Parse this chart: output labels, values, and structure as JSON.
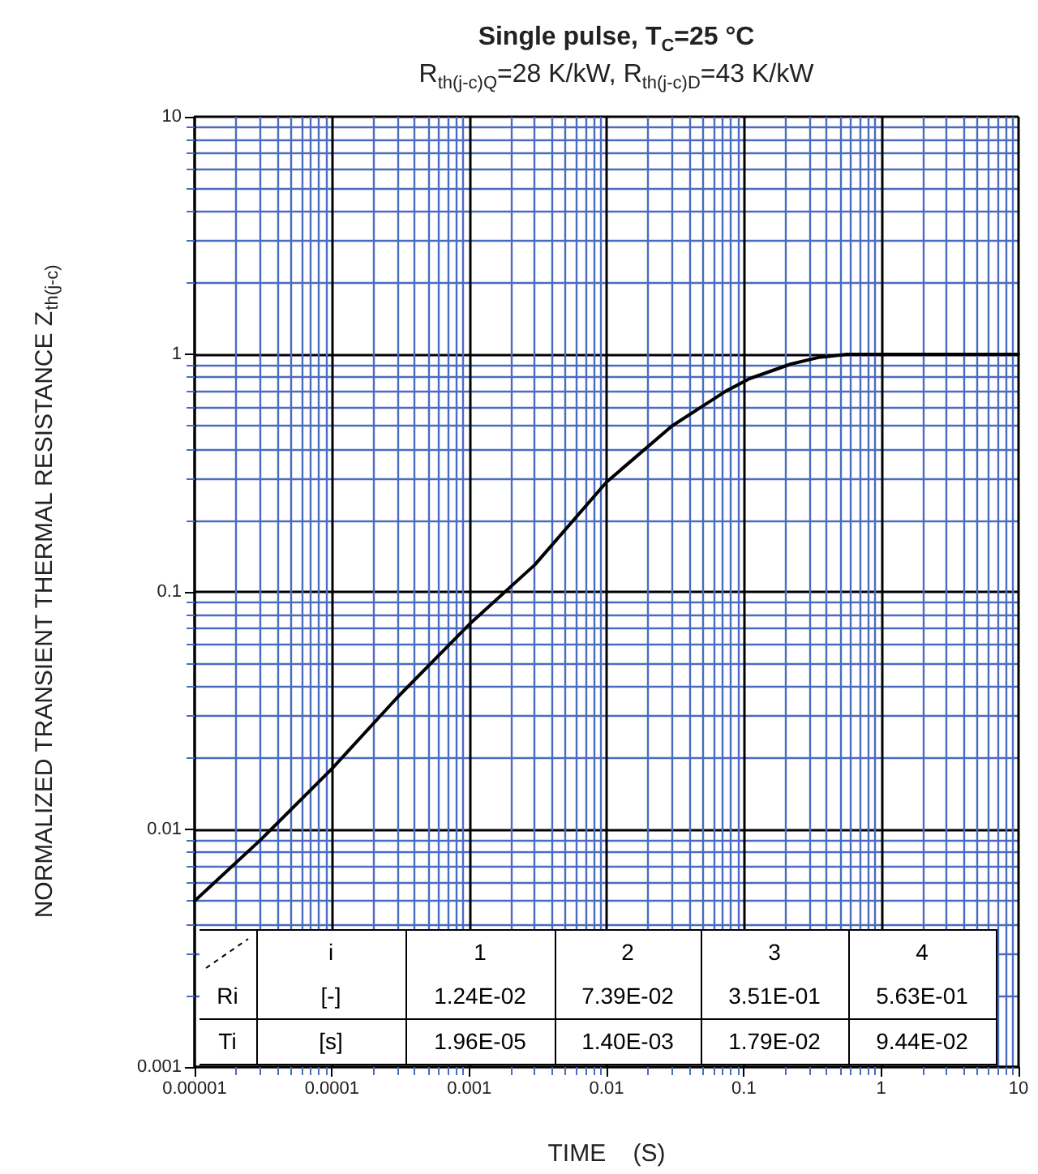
{
  "chart_data": {
    "type": "line",
    "title": "Single pulse, T$_{C}$=25 °C",
    "subtitle": "R$_{th(j-c)Q}$=28 K/kW, R$_{th(j-c)D}$=43 K/kW",
    "xlabel": "TIME    (S)",
    "ylabel": "NORMALIZED TRANSIENT THERMAL RESISTANCE Z$_{th(j-c)}$",
    "log": "xy",
    "grid": true,
    "marker": "none",
    "line_style": "solid",
    "xlim": [
      1e-05,
      10
    ],
    "xticks": [
      {
        "value": 1e-05,
        "label": "0.00001"
      },
      {
        "value": 2e-05,
        "label": null
      },
      {
        "value": 3e-05,
        "label": null
      },
      {
        "value": 4e-05,
        "label": null
      },
      {
        "value": 5e-05,
        "label": null
      },
      {
        "value": 6e-05,
        "label": null
      },
      {
        "value": 7e-05,
        "label": null
      },
      {
        "value": 8e-05,
        "label": null
      },
      {
        "value": 9e-05,
        "label": null
      },
      {
        "value": 0.0001,
        "label": "0.0001"
      },
      {
        "value": 0.0002,
        "label": null
      },
      {
        "value": 0.0003,
        "label": null
      },
      {
        "value": 0.0004,
        "label": null
      },
      {
        "value": 0.0005,
        "label": null
      },
      {
        "value": 0.0006,
        "label": null
      },
      {
        "value": 0.0007,
        "label": null
      },
      {
        "value": 0.0008,
        "label": null
      },
      {
        "value": 0.0009,
        "label": null
      },
      {
        "value": 0.001,
        "label": "0.001"
      },
      {
        "value": 0.002,
        "label": null
      },
      {
        "value": 0.003,
        "label": null
      },
      {
        "value": 0.004,
        "label": null
      },
      {
        "value": 0.005,
        "label": null
      },
      {
        "value": 0.006,
        "label": null
      },
      {
        "value": 0.007,
        "label": null
      },
      {
        "value": 0.008,
        "label": null
      },
      {
        "value": 0.009,
        "label": null
      },
      {
        "value": 0.01,
        "label": "0.01"
      },
      {
        "value": 0.02,
        "label": null
      },
      {
        "value": 0.03,
        "label": null
      },
      {
        "value": 0.04,
        "label": null
      },
      {
        "value": 0.05,
        "label": null
      },
      {
        "value": 0.06,
        "label": null
      },
      {
        "value": 0.07,
        "label": null
      },
      {
        "value": 0.08,
        "label": null
      },
      {
        "value": 0.09,
        "label": null
      },
      {
        "value": 0.1,
        "label": "0.1"
      },
      {
        "value": 0.2,
        "label": null
      },
      {
        "value": 0.3,
        "label": null
      },
      {
        "value": 0.4,
        "label": null
      },
      {
        "value": 0.5,
        "label": null
      },
      {
        "value": 0.6,
        "label": null
      },
      {
        "value": 0.7,
        "label": null
      },
      {
        "value": 0.8,
        "label": null
      },
      {
        "value": 0.9,
        "label": null
      },
      {
        "value": 1,
        "label": "1"
      },
      {
        "value": 2,
        "label": null
      },
      {
        "value": 3,
        "label": null
      },
      {
        "value": 4,
        "label": null
      },
      {
        "value": 5,
        "label": null
      },
      {
        "value": 6,
        "label": null
      },
      {
        "value": 7,
        "label": null
      },
      {
        "value": 8,
        "label": null
      },
      {
        "value": 9,
        "label": null
      },
      {
        "value": 10,
        "label": "10"
      }
    ],
    "ylim": [
      0.001,
      10
    ],
    "yticks": [
      {
        "value": 0.001,
        "label": "0.001"
      },
      {
        "value": 0.002,
        "label": null
      },
      {
        "value": 0.003,
        "label": null
      },
      {
        "value": 0.004,
        "label": null
      },
      {
        "value": 0.005,
        "label": null
      },
      {
        "value": 0.006,
        "label": null
      },
      {
        "value": 0.007,
        "label": null
      },
      {
        "value": 0.008,
        "label": null
      },
      {
        "value": 0.009,
        "label": null
      },
      {
        "value": 0.01,
        "label": "0.01"
      },
      {
        "value": 0.02,
        "label": null
      },
      {
        "value": 0.03,
        "label": null
      },
      {
        "value": 0.04,
        "label": null
      },
      {
        "value": 0.05,
        "label": null
      },
      {
        "value": 0.06,
        "label": null
      },
      {
        "value": 0.07,
        "label": null
      },
      {
        "value": 0.08,
        "label": null
      },
      {
        "value": 0.09,
        "label": null
      },
      {
        "value": 0.1,
        "label": "0.1"
      },
      {
        "value": 0.2,
        "label": null
      },
      {
        "value": 0.3,
        "label": null
      },
      {
        "value": 0.4,
        "label": null
      },
      {
        "value": 0.5,
        "label": null
      },
      {
        "value": 0.6,
        "label": null
      },
      {
        "value": 0.7,
        "label": null
      },
      {
        "value": 0.8,
        "label": null
      },
      {
        "value": 0.9,
        "label": null
      },
      {
        "value": 1,
        "label": "1"
      },
      {
        "value": 2,
        "label": null
      },
      {
        "value": 3,
        "label": null
      },
      {
        "value": 4,
        "label": null
      },
      {
        "value": 5,
        "label": null
      },
      {
        "value": 6,
        "label": null
      },
      {
        "value": 7,
        "label": null
      },
      {
        "value": 8,
        "label": null
      },
      {
        "value": 9,
        "label": null
      },
      {
        "value": 10,
        "label": "10"
      }
    ],
    "series": [
      {
        "color": "#000000",
        "x": [
          1e-05,
          3e-05,
          0.0001,
          0.0003,
          0.001,
          0.003,
          0.01,
          0.03,
          0.074,
          0.11,
          0.22,
          0.35,
          0.56,
          10
        ],
        "values": [
          0.005,
          0.009,
          0.018,
          0.036,
          0.073,
          0.13,
          0.29,
          0.5,
          0.7,
          0.79,
          0.91,
          0.97,
          1.0,
          1.0
        ]
      }
    ],
    "annotations": [
      "i",
      "1",
      "2",
      "3",
      "4",
      "Ri",
      "[-]",
      "1.24E-02",
      "7.39E-02",
      "3.51E-01",
      "5.63E-01",
      "Ti",
      "[s]",
      "1.96E-05",
      "1.40E-03",
      "1.79E-02",
      "9.44E-02"
    ]
  }
}
